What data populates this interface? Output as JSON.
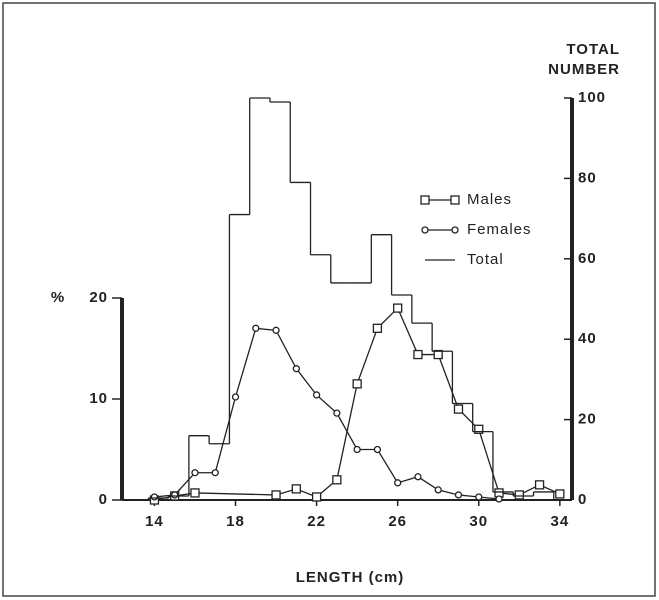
{
  "chart_data": {
    "type": "histogram",
    "xlabel": "LENGTH (cm)",
    "ylabel": "%",
    "y2label": [
      "TOTAL",
      "NUMBER"
    ],
    "xlim": [
      12.4,
      34.6
    ],
    "xticks": [
      14,
      18,
      22,
      26,
      30,
      34
    ],
    "ylim": [
      0,
      20
    ],
    "yticks": [
      0,
      10,
      20
    ],
    "y2lim": [
      0,
      100
    ],
    "y2ticks": [
      0,
      20,
      40,
      60,
      80,
      100
    ],
    "color": "#222222",
    "series": [
      {
        "name": "Males",
        "marker": "square",
        "x": [
          14,
          15,
          16,
          20,
          21,
          22,
          23,
          24,
          25,
          26,
          27,
          28,
          29,
          30,
          31,
          32,
          33,
          34
        ],
        "values": [
          0,
          0.4,
          0.7,
          0.5,
          1.1,
          0.3,
          2,
          11.5,
          17,
          19,
          14.4,
          14.4,
          9,
          7,
          0.7,
          0.5,
          1.5,
          0.6
        ]
      },
      {
        "name": "Females",
        "marker": "circle",
        "x": [
          14,
          15,
          16,
          17,
          18,
          19,
          20,
          21,
          22,
          23,
          24,
          25,
          26,
          27,
          28,
          29,
          30,
          31
        ],
        "values": [
          0.3,
          0.5,
          2.7,
          2.7,
          10.2,
          17,
          16.8,
          13,
          10.4,
          8.6,
          5,
          5,
          1.7,
          2.3,
          1,
          0.5,
          0.3,
          0.1
        ]
      },
      {
        "name": "Total",
        "marker": "step",
        "axis": "y2",
        "bins": [
          13.7,
          14.7,
          15.7,
          16.7,
          17.7,
          18.7,
          19.7,
          20.7,
          21.7,
          22.7,
          23.7,
          24.7,
          25.7,
          26.7,
          27.7,
          28.7,
          29.7,
          30.7,
          31.7,
          32.7,
          33.7
        ],
        "values": [
          0.5,
          1,
          16,
          14,
          71,
          100,
          99,
          79,
          61,
          54,
          54,
          66,
          51,
          44,
          37,
          24,
          17,
          2,
          1,
          2
        ]
      }
    ]
  }
}
